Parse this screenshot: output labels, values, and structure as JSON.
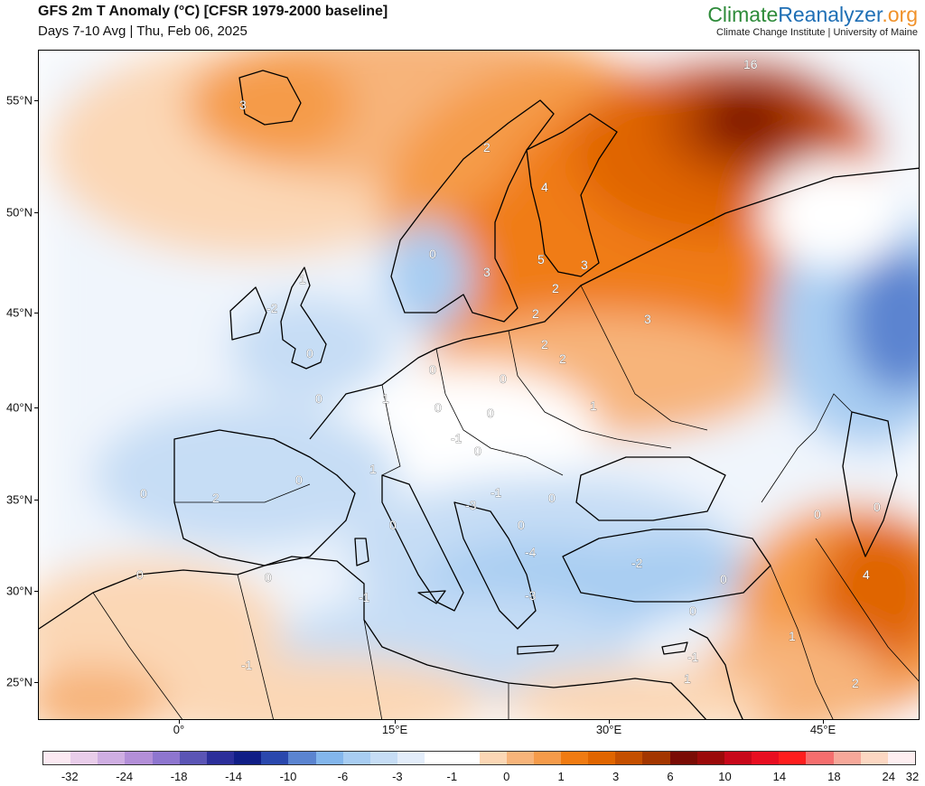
{
  "header": {
    "title": "GFS 2m T Anomaly (°C) [CFSR 1979-2000 baseline]",
    "subtitle": "Days 7-10 Avg | Thu, Feb 06, 2025"
  },
  "brand": {
    "part1": "Climate",
    "part2": "Reanalyzer",
    "part3": ".org",
    "subtitle": "Climate Change Institute | University of Maine",
    "colors": {
      "green": "#2e8b3a",
      "blue": "#1f6fb5",
      "orange": "#f0922b"
    }
  },
  "axes": {
    "latitude_labels": [
      "55°N",
      "50°N",
      "45°N",
      "40°N",
      "35°N",
      "30°N",
      "25°N"
    ],
    "longitude_labels": [
      "0°",
      "15°E",
      "30°E",
      "45°E"
    ]
  },
  "colorbar": {
    "labels": [
      "-32",
      "-24",
      "-18",
      "-14",
      "-10",
      "-6",
      "-3",
      "-1",
      "0",
      "1",
      "3",
      "6",
      "10",
      "14",
      "18",
      "24",
      "32"
    ],
    "colors": [
      "#fbe9f2",
      "#e9cdea",
      "#cfaee2",
      "#b38fd8",
      "#8e76cf",
      "#5b55b5",
      "#2c2f9a",
      "#101e86",
      "#2a48ad",
      "#5b84d0",
      "#83b6ec",
      "#a8cdf2",
      "#c6ddf5",
      "#e3edfa",
      "#ffffff",
      "#ffffff",
      "#fbd7b5",
      "#f7b47a",
      "#f59b4a",
      "#f07b12",
      "#e06500",
      "#c44f00",
      "#a33600",
      "#7a0c05",
      "#9b0a0a",
      "#c8081a",
      "#e80e21",
      "#ff1e1e",
      "#f56e6e",
      "#f6a89a",
      "#fcd7c2",
      "#fdeef0"
    ]
  },
  "map_labels": [
    "16",
    "3",
    "2",
    "4",
    "0",
    "3",
    "5",
    "3",
    "1",
    "-2",
    "2",
    "2",
    "3",
    "0",
    "2",
    "2",
    "0",
    "0",
    "1",
    "0",
    "1",
    "0",
    "0",
    "-1",
    "0",
    "1",
    "0",
    "0",
    "2",
    "0",
    "-3",
    "-1",
    "0",
    "0",
    "-4",
    "0",
    "0",
    "-1",
    "-3",
    "-2",
    "0",
    "0",
    "0",
    "4",
    "0",
    "1",
    "-1",
    "1",
    "2",
    "-1"
  ]
}
